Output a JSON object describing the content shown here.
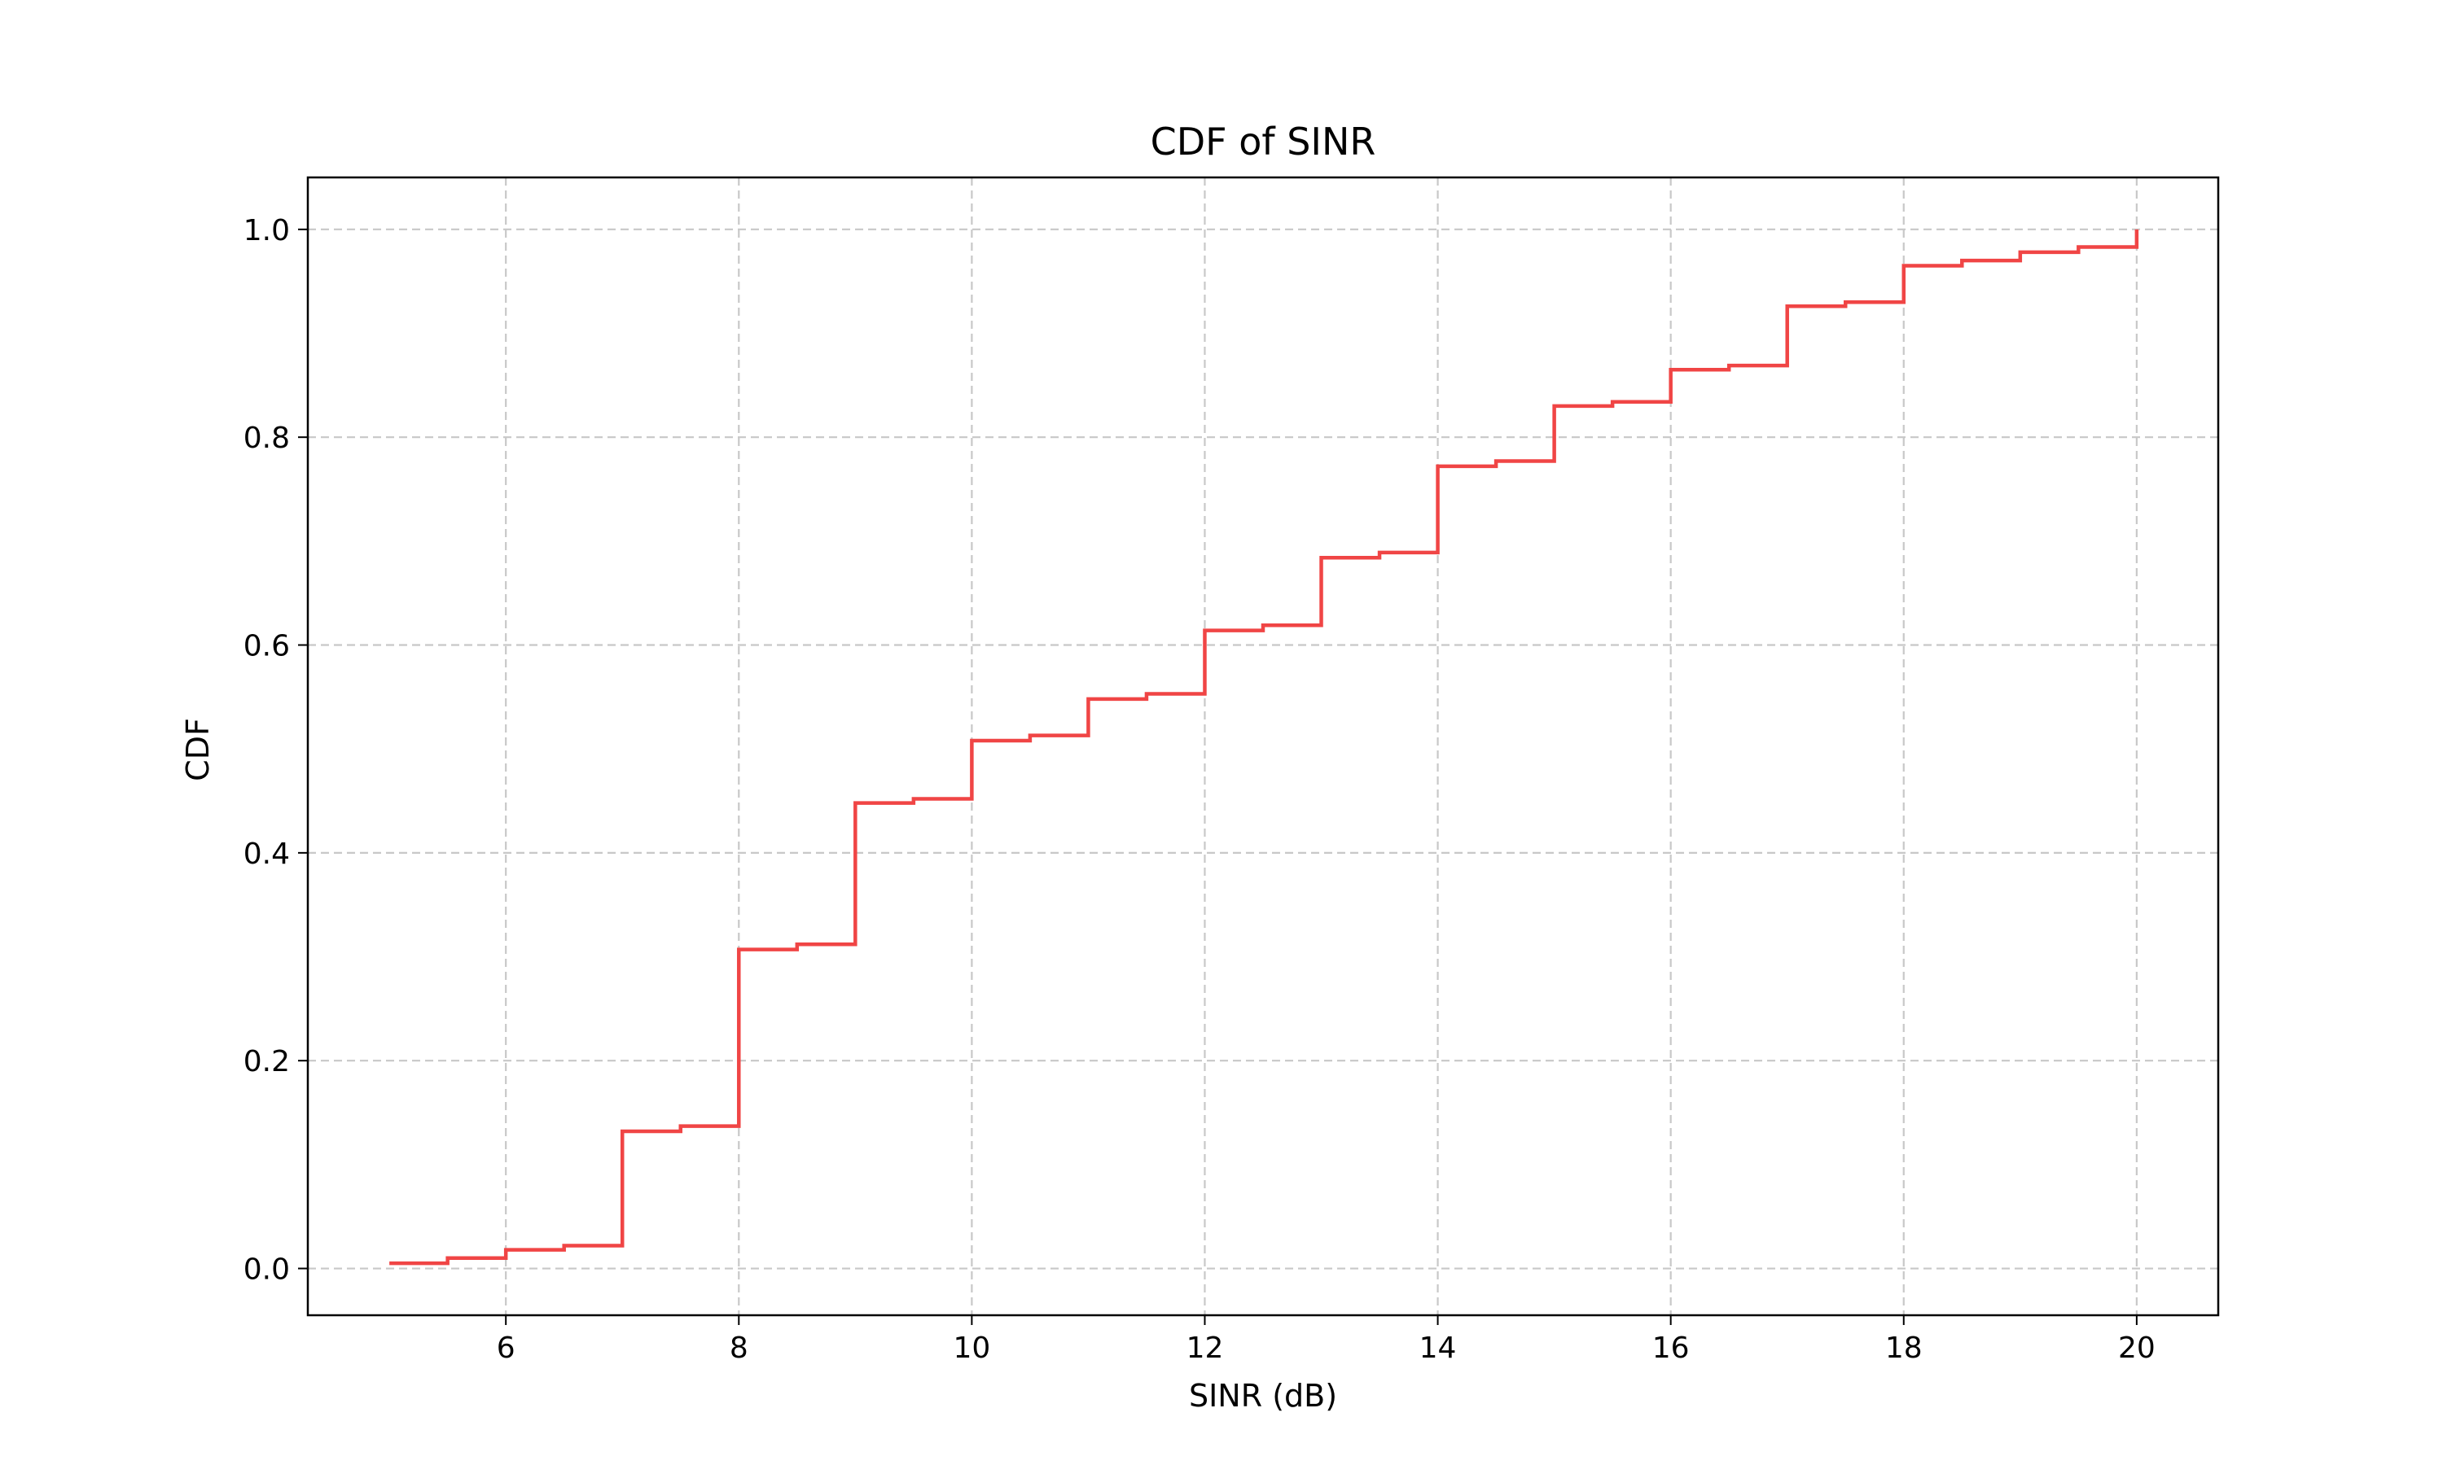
{
  "chart_data": {
    "type": "line",
    "drawstyle": "steps-post",
    "title": "CDF of SINR",
    "xlabel": "SINR (dB)",
    "ylabel": "CDF",
    "xlim": [
      4.3,
      20.7
    ],
    "ylim": [
      -0.045,
      1.05
    ],
    "xticks": [
      6,
      8,
      10,
      12,
      14,
      16,
      18,
      20
    ],
    "xtick_labels": [
      "6",
      "8",
      "10",
      "12",
      "14",
      "16",
      "18",
      "20"
    ],
    "yticks": [
      0.0,
      0.2,
      0.4,
      0.6,
      0.8,
      1.0
    ],
    "ytick_labels": [
      "0.0",
      "0.2",
      "0.4",
      "0.6",
      "0.8",
      "1.0"
    ],
    "grid": true,
    "series": [
      {
        "color": "#f04545",
        "x": [
          5.0,
          5.5,
          6.0,
          6.5,
          7.0,
          7.5,
          8.0,
          8.5,
          9.0,
          9.5,
          10.0,
          10.5,
          11.0,
          11.5,
          12.0,
          12.5,
          13.0,
          13.5,
          14.0,
          14.5,
          15.0,
          15.5,
          16.0,
          16.5,
          17.0,
          17.5,
          18.0,
          18.5,
          19.0,
          19.5,
          20.0
        ],
        "y": [
          0.005,
          0.01,
          0.018,
          0.022,
          0.132,
          0.137,
          0.307,
          0.312,
          0.448,
          0.452,
          0.508,
          0.513,
          0.548,
          0.553,
          0.614,
          0.619,
          0.684,
          0.689,
          0.772,
          0.777,
          0.83,
          0.834,
          0.865,
          0.869,
          0.926,
          0.93,
          0.965,
          0.97,
          0.978,
          0.983,
          1.0
        ]
      }
    ]
  }
}
